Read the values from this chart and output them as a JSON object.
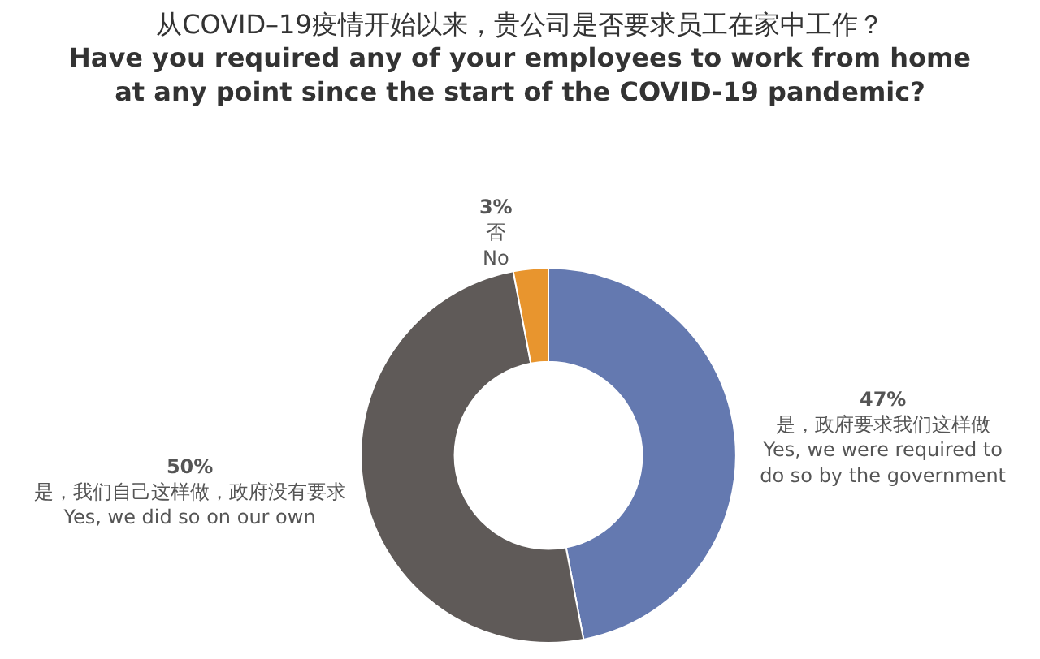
{
  "chart_data": {
    "type": "donut",
    "title": "从COVID–19疫情开始以来，贵公司是否要求员工在家中工作？\nHave you required any of your employees to work from home\nat any point since the start of the COVID-19 pandemic?",
    "categories": [
      "是，政府要求我们这样做\nYes, we were required to\ndo so by the government",
      "是，我们自己这样做，政府没有要求\nYes, we did so on our own",
      "否\nNo"
    ],
    "values": [
      47,
      50,
      3
    ],
    "value_labels": [
      "47%",
      "50%",
      "3%"
    ],
    "colors": [
      "#6479b0",
      "#5f5a58",
      "#e8952e"
    ],
    "legend": false
  }
}
